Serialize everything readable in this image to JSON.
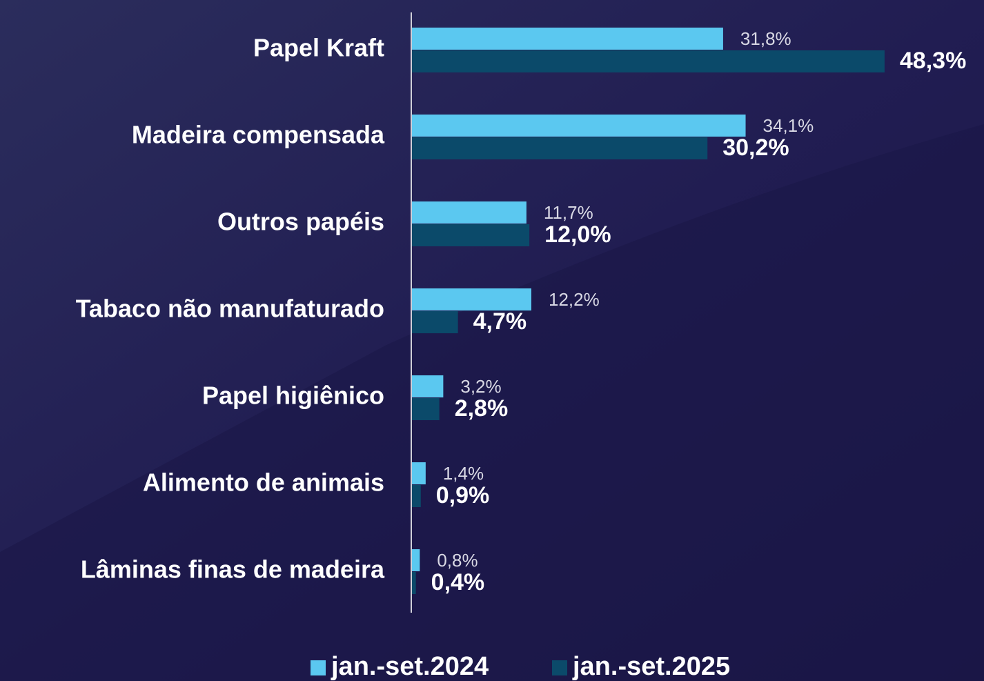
{
  "chart_data": {
    "type": "bar",
    "orientation": "horizontal",
    "categories": [
      "Papel Kraft",
      "Madeira compensada",
      "Outros papéis",
      "Tabaco não manufaturado",
      "Papel higiênico",
      "Alimento de animais",
      "Lâminas finas de madeira"
    ],
    "series": [
      {
        "name": "jan.-set.2024",
        "color": "#5bc8f0",
        "values": [
          31.8,
          34.1,
          11.7,
          12.2,
          3.2,
          1.4,
          0.8
        ],
        "value_labels": [
          "31,8%",
          "34,1%",
          "11,7%",
          "12,2%",
          "3,2%",
          "1,4%",
          "0,8%"
        ]
      },
      {
        "name": "jan.-set.2025",
        "color": "#0b4a6a",
        "values": [
          48.3,
          30.2,
          12.0,
          4.7,
          2.8,
          0.9,
          0.4
        ],
        "value_labels": [
          "48,3%",
          "30,2%",
          "12,0%",
          "4,7%",
          "2,8%",
          "0,9%",
          "0,4%"
        ]
      }
    ],
    "xlim": [
      0,
      50
    ],
    "legend": "bottom"
  }
}
